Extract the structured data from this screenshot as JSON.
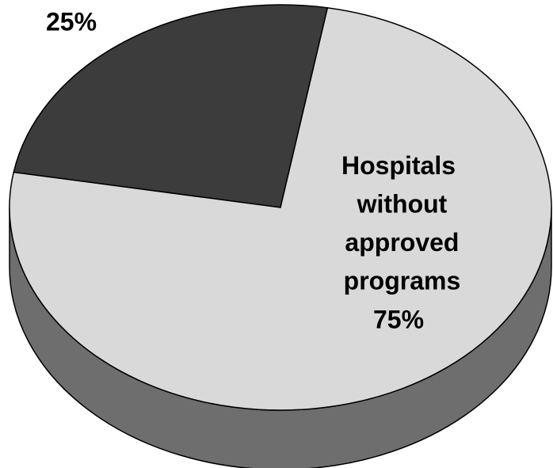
{
  "chart_data": {
    "type": "pie",
    "categories": [
      null,
      "Hospitals without approved programs"
    ],
    "values": [
      25,
      75
    ],
    "value_labels": [
      "25%",
      "75%"
    ],
    "colors": [
      "#3c3c3c",
      "#d9d9d9"
    ],
    "side_color": "#6e6e6e"
  }
}
